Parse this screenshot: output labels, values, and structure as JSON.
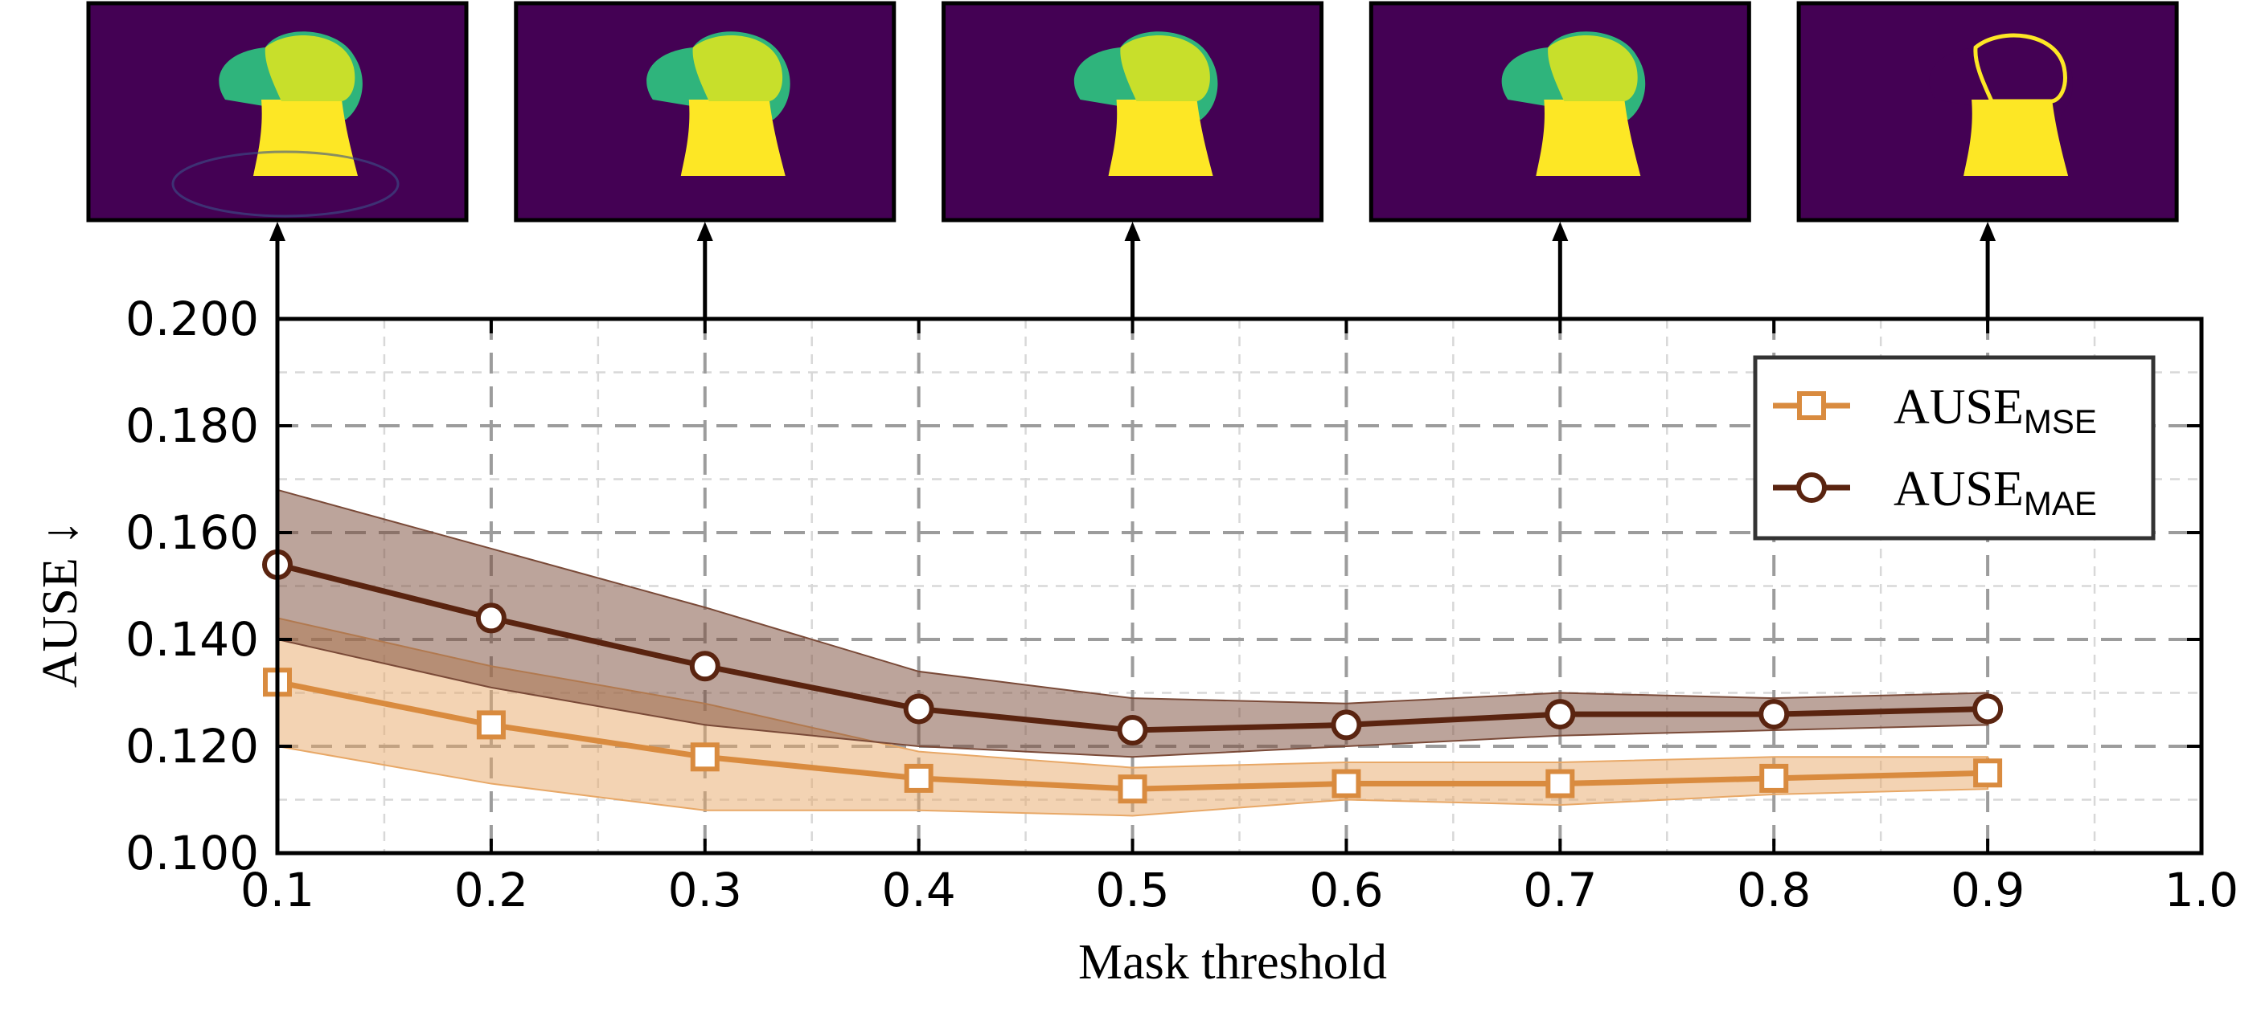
{
  "chart_data": {
    "type": "line",
    "xlabel": "Mask threshold",
    "ylabel": "AUSE ↓",
    "xlim": [
      0.1,
      1.0
    ],
    "ylim": [
      0.1,
      0.2
    ],
    "grid": true,
    "legend_position": "top-right",
    "x_ticks": [
      "0.1",
      "0.2",
      "0.3",
      "0.4",
      "0.5",
      "0.6",
      "0.7",
      "0.8",
      "0.9",
      "1.0"
    ],
    "y_ticks": [
      "0.100",
      "0.120",
      "0.140",
      "0.160",
      "0.180",
      "0.200"
    ],
    "x": [
      0.1,
      0.2,
      0.3,
      0.4,
      0.5,
      0.6,
      0.7,
      0.8,
      0.9
    ],
    "series": [
      {
        "name": "AUSE",
        "subscript": "MSE",
        "marker": "square",
        "color": "#d98b3f",
        "values": [
          0.132,
          0.124,
          0.118,
          0.114,
          0.112,
          0.113,
          0.113,
          0.114,
          0.115
        ],
        "lower": [
          0.12,
          0.113,
          0.108,
          0.108,
          0.107,
          0.11,
          0.109,
          0.111,
          0.112
        ],
        "upper": [
          0.144,
          0.135,
          0.128,
          0.119,
          0.116,
          0.117,
          0.117,
          0.118,
          0.118
        ]
      },
      {
        "name": "AUSE",
        "subscript": "MAE",
        "marker": "circle",
        "color": "#5a2410",
        "values": [
          0.154,
          0.144,
          0.135,
          0.127,
          0.123,
          0.124,
          0.126,
          0.126,
          0.127
        ],
        "lower": [
          0.14,
          0.131,
          0.124,
          0.12,
          0.118,
          0.12,
          0.122,
          0.123,
          0.124
        ],
        "upper": [
          0.168,
          0.157,
          0.146,
          0.134,
          0.129,
          0.128,
          0.13,
          0.129,
          0.13
        ]
      }
    ],
    "thumbnails": [
      {
        "threshold": 0.1
      },
      {
        "threshold": 0.3
      },
      {
        "threshold": 0.5
      },
      {
        "threshold": 0.7
      },
      {
        "threshold": 0.9
      }
    ]
  }
}
